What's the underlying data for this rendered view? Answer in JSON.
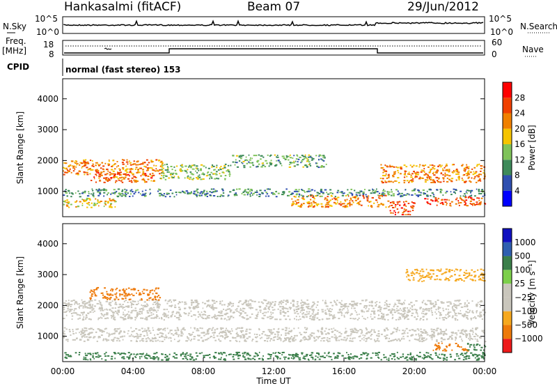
{
  "header": {
    "station": "Hankasalmi (fitACF)",
    "beam": "Beam 07",
    "date": "29/Jun/2012"
  },
  "status_panels": {
    "nsky_label": "N.Sky",
    "nsky_ticks": [
      "10^5",
      "10^0"
    ],
    "nsearch_label": "N.Search",
    "nsearch_ticks": [
      "10^5",
      "10^0"
    ],
    "freq_label_1": "Freq.",
    "freq_label_2": "[MHz]",
    "freq_ticks": [
      "18",
      "8"
    ],
    "nave_label": "Nave",
    "nave_ticks": [
      "60",
      "0"
    ],
    "cpid_label": "CPID",
    "cpid_text": "normal (fast stereo) 153"
  },
  "colors": {
    "power_scale": [
      "#0000ff",
      "#2f4fb0",
      "#3e8a5a",
      "#7fc35a",
      "#f5c400",
      "#f08000",
      "#f04000",
      "#ff0000"
    ],
    "velocity_scale": [
      "#ee1a1a",
      "#ee7a0a",
      "#f6a81e",
      "#c9c6bc",
      "#c9c6bc",
      "#7ccf4a",
      "#3b7f4a",
      "#2f5fb0",
      "#1010c0"
    ],
    "groundscatter": "#c9c6bc"
  },
  "chart_data": [
    {
      "type": "heatmap",
      "panel": "power",
      "ylabel": "Slant Range [km]",
      "x_ticks": [
        "00:00",
        "04:00",
        "08:00",
        "12:00",
        "16:00",
        "20:00",
        "00:00"
      ],
      "y_ticks": [
        1000,
        2000,
        3000,
        4000
      ],
      "ylim": [
        180,
        4650
      ],
      "colorbar": {
        "label": "Power [dB]",
        "ticks": [
          4,
          8,
          12,
          16,
          20,
          24,
          28
        ],
        "range": [
          0,
          32
        ]
      },
      "scatter_bands_hours_km": [
        {
          "x0": 0.0,
          "x1": 5.7,
          "y0": 1550,
          "y1": 2050,
          "level": 22
        },
        {
          "x0": 1.5,
          "x1": 5.2,
          "y0": 1300,
          "y1": 1650,
          "level": 24
        },
        {
          "x0": 5.5,
          "x1": 9.5,
          "y0": 1400,
          "y1": 1900,
          "level": 14
        },
        {
          "x0": 9.5,
          "x1": 15.0,
          "y0": 1800,
          "y1": 2200,
          "level": 12
        },
        {
          "x0": 0.0,
          "x1": 3.0,
          "y0": 500,
          "y1": 800,
          "level": 18
        },
        {
          "x0": 13.0,
          "x1": 18.5,
          "y0": 500,
          "y1": 900,
          "level": 22
        },
        {
          "x0": 18.0,
          "x1": 24.0,
          "y0": 1300,
          "y1": 1900,
          "level": 22
        },
        {
          "x0": 18.5,
          "x1": 20.0,
          "y0": 250,
          "y1": 700,
          "level": 26
        },
        {
          "x0": 20.5,
          "x1": 24.0,
          "y0": 550,
          "y1": 850,
          "level": 26
        },
        {
          "x0": 0.0,
          "x1": 24.0,
          "y0": 850,
          "y1": 1100,
          "level": 10
        }
      ]
    },
    {
      "type": "heatmap",
      "panel": "velocity",
      "xlabel": "Time UT",
      "ylabel": "Slant Range [km]",
      "x_ticks": [
        "00:00",
        "04:00",
        "08:00",
        "12:00",
        "16:00",
        "20:00",
        "00:00"
      ],
      "y_ticks": [
        1000,
        2000,
        3000,
        4000
      ],
      "ylim": [
        180,
        4650
      ],
      "colorbar": {
        "label": "Velocity [m s⁻¹]",
        "ticks": [
          "1000",
          "500",
          "100",
          "25",
          "−25",
          "−100",
          "−500",
          "−1000"
        ]
      },
      "scatter_bands_hours_km": [
        {
          "x0": 0.0,
          "x1": 24.0,
          "y0": 1550,
          "y1": 2200,
          "level": 0
        },
        {
          "x0": 0.0,
          "x1": 24.0,
          "y0": 850,
          "y1": 1300,
          "level": 0
        },
        {
          "x0": 1.5,
          "x1": 5.5,
          "y0": 2200,
          "y1": 2600,
          "level": -300
        },
        {
          "x0": 19.5,
          "x1": 24.0,
          "y0": 2800,
          "y1": 3200,
          "level": -50
        },
        {
          "x0": 21.0,
          "x1": 23.0,
          "y0": 550,
          "y1": 800,
          "level": -200
        },
        {
          "x0": 23.0,
          "x1": 24.0,
          "y0": 550,
          "y1": 800,
          "level": 150
        },
        {
          "x0": 0.0,
          "x1": 24.0,
          "y0": 250,
          "y1": 500,
          "level": 120
        }
      ]
    }
  ]
}
